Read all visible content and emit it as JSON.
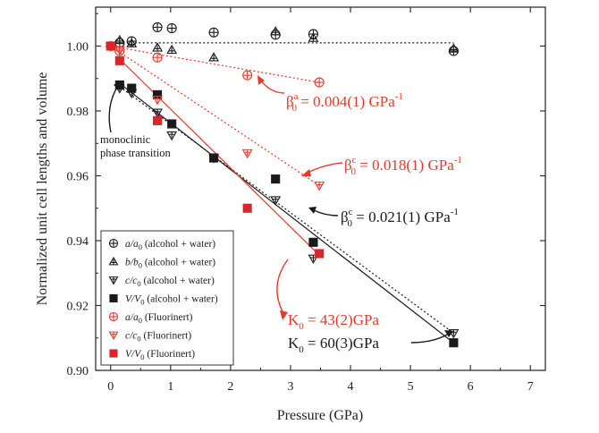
{
  "chart_data": {
    "type": "scatter",
    "title": "",
    "xlabel": "Pressure (GPa)",
    "ylabel": "Normalized unit cell lengths and volume",
    "xlim": [
      -0.25,
      7.25
    ],
    "ylim": [
      0.9,
      1.012
    ],
    "xticks": [
      "0",
      "1",
      "2",
      "3",
      "4",
      "5",
      "6",
      "7"
    ],
    "yticks": [
      "0.90",
      "0.92",
      "0.94",
      "0.96",
      "0.98",
      "1.00"
    ],
    "grid": false,
    "legend_position": "bottom-left",
    "colors": {
      "black": "#1a1a1a",
      "red": "#e8382c",
      "red_dark": "#d8262a"
    },
    "series": [
      {
        "name": "a/a0 (alcohol + water)",
        "legend_main": "a/a",
        "legend_sub": "0",
        "legend_rest": " (alcohol + water)",
        "marker": "circle-plus",
        "color": "#1a1a1a",
        "x": [
          0.15,
          0.35,
          0.78,
          1.02,
          1.72,
          2.75,
          3.38,
          5.72
        ],
        "y": [
          1.001,
          1.0015,
          1.0058,
          1.0055,
          1.0042,
          1.0035,
          1.0037,
          0.9985
        ]
      },
      {
        "name": "b/b0 (alcohol + water)",
        "legend_main": "b/b",
        "legend_sub": "0",
        "legend_rest": " (alcohol + water)",
        "marker": "triangle-up-plus",
        "color": "#1a1a1a",
        "x": [
          0.15,
          0.35,
          0.78,
          1.02,
          1.72,
          2.75,
          3.38,
          5.72
        ],
        "y": [
          1.0018,
          1.0008,
          0.9995,
          0.9988,
          0.9965,
          1.0045,
          1.0025,
          0.9992
        ]
      },
      {
        "name": "c/c0 (alcohol + water)",
        "legend_main": "c/c",
        "legend_sub": "0",
        "legend_rest": " (alcohol + water)",
        "marker": "triangle-down-plus",
        "color": "#1a1a1a",
        "x": [
          0.15,
          0.35,
          0.78,
          1.02,
          1.72,
          2.75,
          3.38,
          5.72
        ],
        "y": [
          0.987,
          0.9855,
          0.9795,
          0.9725,
          0.9655,
          0.9525,
          0.9345,
          0.9115
        ]
      },
      {
        "name": "V/V0 (alcohol + water)",
        "legend_main": "V/V",
        "legend_sub": "0",
        "legend_rest": " (alcohol + water)",
        "marker": "square-filled",
        "color": "#1a1a1a",
        "x": [
          0.15,
          0.35,
          0.78,
          1.02,
          1.72,
          2.75,
          3.38,
          5.72
        ],
        "y": [
          0.988,
          0.987,
          0.985,
          0.976,
          0.9655,
          0.959,
          0.9395,
          0.9085
        ]
      },
      {
        "name": "a/a0 (Fluorinert)",
        "legend_main": "a/a",
        "legend_sub": "0",
        "legend_rest": " (Fluorinert)",
        "marker": "circle-plus",
        "color": "#e8382c",
        "x": [
          0.0,
          0.15,
          0.78,
          2.28,
          3.48
        ],
        "y": [
          1.0,
          0.9985,
          0.9965,
          0.991,
          0.9888
        ]
      },
      {
        "name": "c/c0 (Fluorinert)",
        "legend_main": "c/c",
        "legend_sub": "0",
        "legend_rest": " (Fluorinert)",
        "marker": "triangle-down-plus",
        "color": "#e8382c",
        "x": [
          0.0,
          0.15,
          0.78,
          2.28,
          3.48
        ],
        "y": [
          1.0,
          0.9988,
          0.9835,
          0.967,
          0.957
        ]
      },
      {
        "name": "V/V0 (Fluorinert)",
        "legend_main": "V/V",
        "legend_sub": "0",
        "legend_rest": " (Fluorinert)",
        "marker": "square-filled",
        "color": "#d8262a",
        "x": [
          0.0,
          0.15,
          0.78,
          2.28,
          3.48
        ],
        "y": [
          1.0,
          0.9955,
          0.977,
          0.95,
          0.936
        ]
      }
    ],
    "fit_lines": [
      {
        "series": "b reference",
        "style": "dotted",
        "color": "#1a1a1a",
        "x": [
          0.0,
          5.72
        ],
        "y": [
          1.001,
          1.001
        ]
      },
      {
        "series": "a/a0 (Fluorinert) fit",
        "style": "dotted",
        "color": "#e8382c",
        "x": [
          0.0,
          3.48
        ],
        "y": [
          1.0,
          0.9888
        ]
      },
      {
        "series": "c/c0 (Fluorinert) fit",
        "style": "dotted",
        "color": "#e8382c",
        "x": [
          0.0,
          3.48
        ],
        "y": [
          1.0,
          0.957
        ]
      },
      {
        "series": "c/c0 (alcohol + water) fit",
        "style": "dotted",
        "color": "#1a1a1a",
        "x": [
          0.15,
          5.72
        ],
        "y": [
          0.9875,
          0.9115
        ]
      },
      {
        "series": "V/V0 (alcohol + water) fit",
        "style": "solid",
        "color": "#1a1a1a",
        "x": [
          0.15,
          5.72
        ],
        "y": [
          0.9885,
          0.9085
        ]
      },
      {
        "series": "V/V0 (Fluorinert) fit",
        "style": "solid",
        "color": "#e8382c",
        "x": [
          0.15,
          3.48
        ],
        "y": [
          0.996,
          0.9355
        ]
      }
    ],
    "annotations": [
      {
        "id": "beta-a",
        "color": "#e8382c",
        "main": "β",
        "sup": "a",
        "sub": "0",
        "rest": " = 0.004(1) GPa",
        "sup2": "-1"
      },
      {
        "id": "beta-c-red",
        "color": "#e8382c",
        "main": "β",
        "sup": "c",
        "sub": "0",
        "rest": " = 0.018(1) GPa",
        "sup2": "-1"
      },
      {
        "id": "beta-c-black",
        "color": "#1a1a1a",
        "main": "β",
        "sup": "c",
        "sub": "0",
        "rest": " = 0.021(1) GPa",
        "sup2": "-1"
      },
      {
        "id": "k-red",
        "color": "#e8382c",
        "main": "K",
        "sub": "0",
        "rest": " = 43(2)GPa"
      },
      {
        "id": "k-black",
        "color": "#1a1a1a",
        "main": "K",
        "sub": "0",
        "rest": " = 60(3)GPa"
      }
    ],
    "phase_label": [
      "monoclinic",
      "phase transition"
    ]
  }
}
